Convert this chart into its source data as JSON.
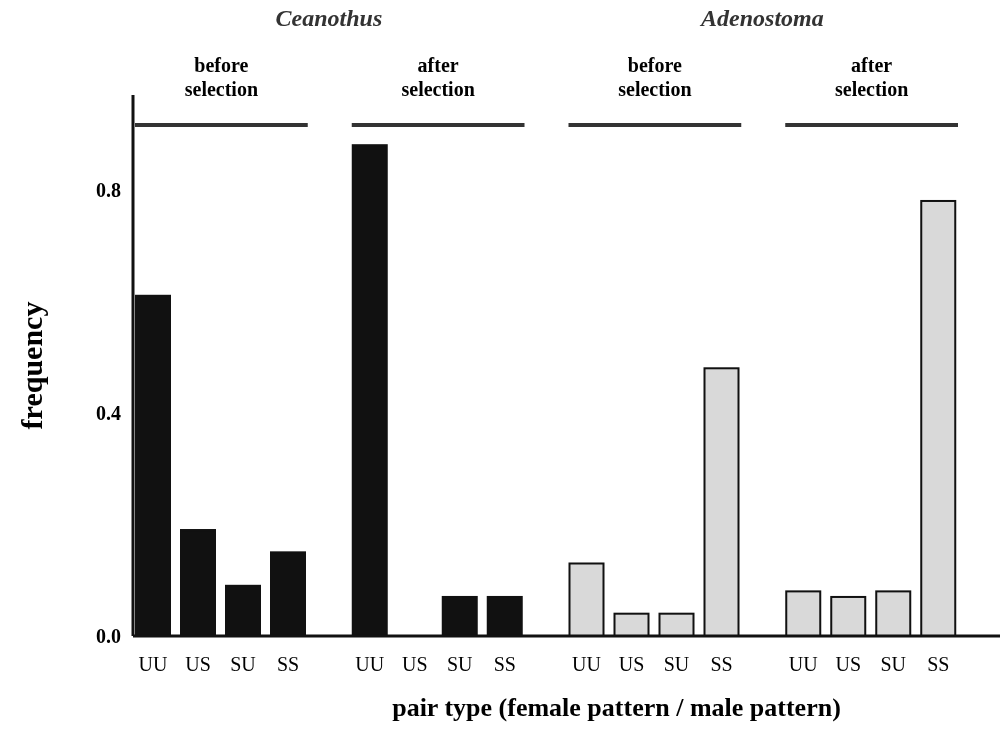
{
  "chart_data": {
    "type": "bar",
    "xlabel": "pair type (female pattern / male pattern)",
    "ylabel": "frequency",
    "categories": [
      "UU",
      "US",
      "SU",
      "SS",
      "UU",
      "US",
      "SU",
      "SS",
      "UU",
      "US",
      "SU",
      "SS",
      "UU",
      "US",
      "SU",
      "SS"
    ],
    "values": [
      0.61,
      0.19,
      0.09,
      0.15,
      0.88,
      0,
      0.07,
      0.07,
      0.13,
      0.04,
      0.04,
      0.48,
      0.08,
      0.07,
      0.08,
      0.78
    ],
    "colors": [
      "#111111",
      "#111111",
      "#111111",
      "#111111",
      "#111111",
      "#111111",
      "#111111",
      "#111111",
      "#d9d9d9",
      "#d9d9d9",
      "#d9d9d9",
      "#d9d9d9",
      "#d9d9d9",
      "#d9d9d9",
      "#d9d9d9",
      "#d9d9d9"
    ],
    "ylim": [
      0,
      0.97
    ],
    "yticks": [
      {
        "value": 0,
        "label": "0.0"
      },
      {
        "value": 0.4,
        "label": "0.4"
      },
      {
        "value": 0.8,
        "label": "0.8"
      }
    ],
    "annotations": [
      "Ceanothus",
      "Adenostoma",
      "before selection",
      "after selection",
      "before selection",
      "after selection"
    ],
    "grid": false
  }
}
